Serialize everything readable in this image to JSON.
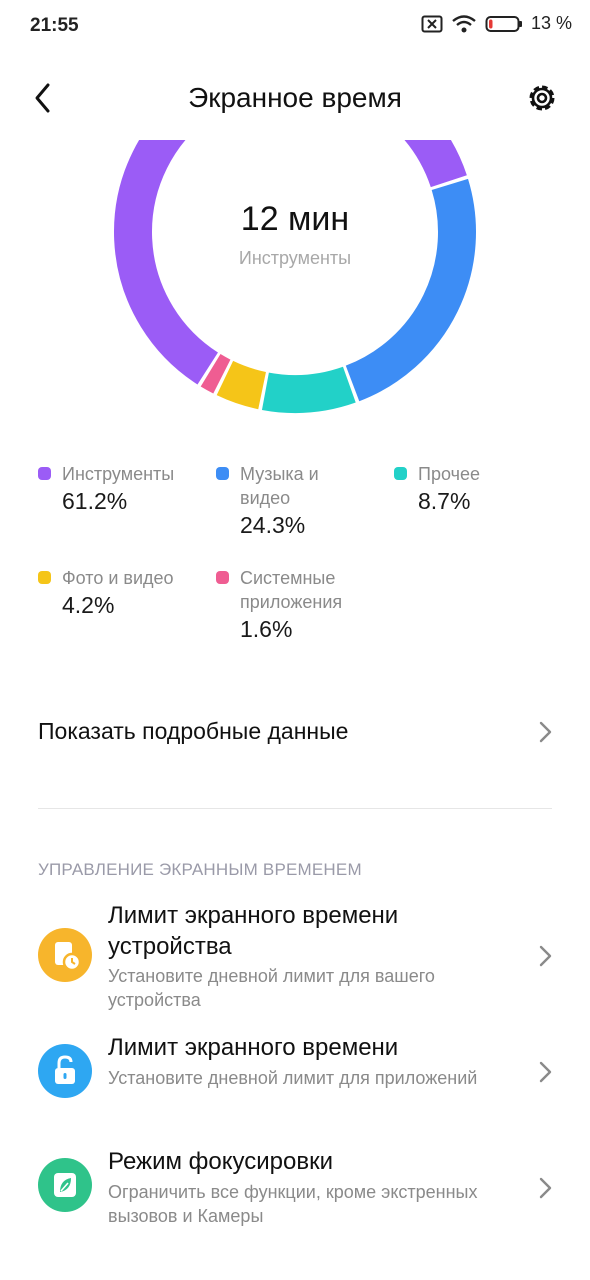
{
  "status_bar": {
    "time": "21:55",
    "battery_percent": "13 %",
    "battery_level": 0.13,
    "icons": [
      "sim-off-icon",
      "wifi-icon",
      "battery-low-icon"
    ]
  },
  "header": {
    "title": "Экранное время",
    "back_icon": "chevron-left-icon",
    "settings_icon": "gear-icon"
  },
  "chart_data": {
    "type": "pie",
    "variant": "donut",
    "center_value": "12 мин",
    "center_label": "Инструменты",
    "series": [
      {
        "name": "Инструменты",
        "value": 61.2,
        "label": "61.2%",
        "color": "#9b5cf6"
      },
      {
        "name": "Музыка и видео",
        "value": 24.3,
        "label": "24.3%",
        "color": "#3d8df5"
      },
      {
        "name": "Прочее",
        "value": 8.7,
        "label": "8.7%",
        "color": "#22d1c8"
      },
      {
        "name": "Фото и видео",
        "value": 4.2,
        "label": "4.2%",
        "color": "#f5c518"
      },
      {
        "name": "Системные приложения",
        "value": 1.6,
        "label": "1.6%",
        "color": "#ef5d92"
      }
    ]
  },
  "legend": [
    {
      "label": "Инструменты",
      "pct": "61.2%",
      "color": "#9b5cf6"
    },
    {
      "label": "Музыка и видео",
      "pct": "24.3%",
      "color": "#3d8df5"
    },
    {
      "label": "Прочее",
      "pct": "8.7%",
      "color": "#22d1c8"
    },
    {
      "label": "Фото и видео",
      "pct": "4.2%",
      "color": "#f5c518"
    },
    {
      "label": "Системные приложения",
      "pct": "1.6%",
      "color": "#ef5d92"
    }
  ],
  "details": {
    "label": "Показать подробные данные",
    "icon": "chevron-right-icon"
  },
  "management": {
    "header": "УПРАВЛЕНИЕ ЭКРАННЫМ ВРЕМЕНЕМ",
    "items": [
      {
        "title": "Лимит экранного времени устройства",
        "subtitle": "Установите дневной лимит для вашего устройства",
        "icon": "device-timer-icon",
        "color": "#f7b52c"
      },
      {
        "title": "Лимит экранного времени",
        "subtitle": "Установите дневной лимит для приложений",
        "icon": "unlock-icon",
        "color": "#2ea7f2"
      },
      {
        "title": "Режим фокусировки",
        "subtitle": "Ограничить все функции, кроме экстренных вызовов и Камеры",
        "icon": "leaf-icon",
        "color": "#2fc38a"
      }
    ]
  }
}
